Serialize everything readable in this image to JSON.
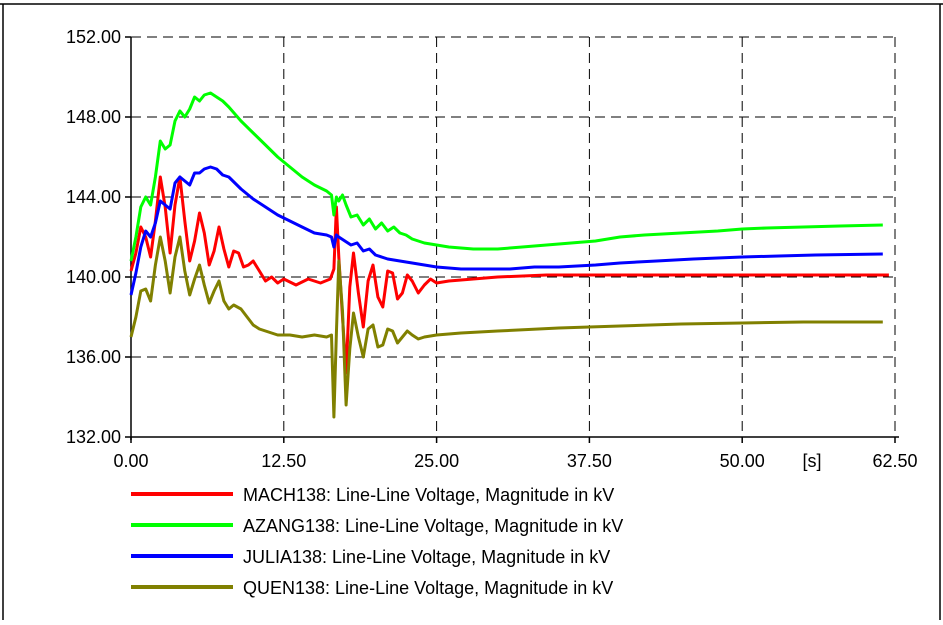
{
  "chart_data": {
    "type": "line",
    "x_unit_label": "[s]",
    "x_ticks": [
      "0.00",
      "12.50",
      "25.00",
      "37.50",
      "50.00",
      "62.50"
    ],
    "y_ticks": [
      "132.00",
      "136.00",
      "140.00",
      "144.00",
      "148.00",
      "152.00"
    ],
    "xlim": [
      0,
      62.5
    ],
    "ylim": [
      132,
      152
    ],
    "grid": true,
    "legend_position": "bottom",
    "series": [
      {
        "name": "MACH138: Line-Line Voltage, Magnitude in kV",
        "color": "#ff0000",
        "points": [
          [
            0,
            140.3
          ],
          [
            0.4,
            141.2
          ],
          [
            0.8,
            142.5
          ],
          [
            1.2,
            142.0
          ],
          [
            1.6,
            141.0
          ],
          [
            2.0,
            142.8
          ],
          [
            2.4,
            145.0
          ],
          [
            2.8,
            143.5
          ],
          [
            3.2,
            141.2
          ],
          [
            3.6,
            143.6
          ],
          [
            4.0,
            145.0
          ],
          [
            4.4,
            142.8
          ],
          [
            4.8,
            140.8
          ],
          [
            5.2,
            141.8
          ],
          [
            5.6,
            143.2
          ],
          [
            6.0,
            142.2
          ],
          [
            6.4,
            140.6
          ],
          [
            6.8,
            141.3
          ],
          [
            7.2,
            142.5
          ],
          [
            7.6,
            141.4
          ],
          [
            8.0,
            140.5
          ],
          [
            8.4,
            141.3
          ],
          [
            8.8,
            141.2
          ],
          [
            9.2,
            140.5
          ],
          [
            9.6,
            140.6
          ],
          [
            10.0,
            140.8
          ],
          [
            10.5,
            140.3
          ],
          [
            11.0,
            139.8
          ],
          [
            11.5,
            140.0
          ],
          [
            12.0,
            139.7
          ],
          [
            12.5,
            139.9
          ],
          [
            13.5,
            139.6
          ],
          [
            14.5,
            139.9
          ],
          [
            15.5,
            139.7
          ],
          [
            16.3,
            139.9
          ],
          [
            16.6,
            140.4
          ],
          [
            16.8,
            143.5
          ],
          [
            17.0,
            141.0
          ],
          [
            17.3,
            138.0
          ],
          [
            17.6,
            135.2
          ],
          [
            17.9,
            139.5
          ],
          [
            18.2,
            141.2
          ],
          [
            18.6,
            139.2
          ],
          [
            19.0,
            137.5
          ],
          [
            19.4,
            139.8
          ],
          [
            19.8,
            140.6
          ],
          [
            20.2,
            139.0
          ],
          [
            20.6,
            138.5
          ],
          [
            21.0,
            140.3
          ],
          [
            21.4,
            140.2
          ],
          [
            21.8,
            138.9
          ],
          [
            22.2,
            139.2
          ],
          [
            22.6,
            140.1
          ],
          [
            23.0,
            139.8
          ],
          [
            23.5,
            139.2
          ],
          [
            24.0,
            139.6
          ],
          [
            24.5,
            139.9
          ],
          [
            25.0,
            139.7
          ],
          [
            26,
            139.8
          ],
          [
            28,
            139.9
          ],
          [
            30,
            140.0
          ],
          [
            34,
            140.1
          ],
          [
            38,
            140.1
          ],
          [
            45,
            140.1
          ],
          [
            55,
            140.1
          ],
          [
            62,
            140.1
          ]
        ]
      },
      {
        "name": "AZANG138: Line-Line Voltage, Magnitude in kV",
        "color": "#00ff00",
        "points": [
          [
            0,
            140.8
          ],
          [
            0.4,
            142.0
          ],
          [
            0.8,
            143.5
          ],
          [
            1.2,
            144.0
          ],
          [
            1.6,
            143.6
          ],
          [
            2.0,
            145.0
          ],
          [
            2.4,
            146.8
          ],
          [
            2.8,
            146.4
          ],
          [
            3.2,
            146.6
          ],
          [
            3.6,
            147.8
          ],
          [
            4.0,
            148.3
          ],
          [
            4.4,
            148.0
          ],
          [
            4.8,
            148.4
          ],
          [
            5.2,
            149.0
          ],
          [
            5.6,
            148.8
          ],
          [
            6.0,
            149.1
          ],
          [
            6.5,
            149.2
          ],
          [
            7.0,
            149.0
          ],
          [
            7.5,
            148.8
          ],
          [
            8.0,
            148.5
          ],
          [
            9.0,
            147.8
          ],
          [
            10.0,
            147.2
          ],
          [
            11.0,
            146.6
          ],
          [
            12.0,
            146.0
          ],
          [
            13.0,
            145.5
          ],
          [
            14.0,
            145.0
          ],
          [
            15.0,
            144.6
          ],
          [
            16.0,
            144.3
          ],
          [
            16.4,
            144.1
          ],
          [
            16.6,
            143.1
          ],
          [
            16.8,
            144.0
          ],
          [
            17.0,
            143.8
          ],
          [
            17.3,
            144.1
          ],
          [
            17.6,
            143.6
          ],
          [
            18.0,
            143.0
          ],
          [
            18.5,
            143.1
          ],
          [
            19.0,
            142.6
          ],
          [
            19.5,
            142.9
          ],
          [
            20.0,
            142.4
          ],
          [
            20.5,
            142.7
          ],
          [
            21.0,
            142.3
          ],
          [
            21.5,
            142.5
          ],
          [
            22.0,
            142.2
          ],
          [
            22.5,
            142.1
          ],
          [
            23.0,
            141.9
          ],
          [
            24.0,
            141.7
          ],
          [
            25.0,
            141.6
          ],
          [
            26.0,
            141.5
          ],
          [
            28.0,
            141.4
          ],
          [
            30.0,
            141.4
          ],
          [
            32.0,
            141.5
          ],
          [
            34.0,
            141.6
          ],
          [
            36.0,
            141.7
          ],
          [
            38.0,
            141.8
          ],
          [
            40.0,
            142.0
          ],
          [
            42.0,
            142.1
          ],
          [
            45.0,
            142.2
          ],
          [
            48.0,
            142.3
          ],
          [
            50.0,
            142.4
          ],
          [
            52.0,
            142.45
          ],
          [
            55.0,
            142.5
          ],
          [
            58.0,
            142.55
          ],
          [
            61.5,
            142.6
          ]
        ]
      },
      {
        "name": "JULIA138: Line-Line Voltage, Magnitude in kV",
        "color": "#0000ff",
        "points": [
          [
            0,
            139.1
          ],
          [
            0.4,
            140.2
          ],
          [
            0.8,
            141.5
          ],
          [
            1.2,
            142.3
          ],
          [
            1.6,
            142.0
          ],
          [
            2.0,
            142.7
          ],
          [
            2.4,
            143.8
          ],
          [
            2.8,
            143.6
          ],
          [
            3.2,
            143.4
          ],
          [
            3.6,
            144.7
          ],
          [
            4.0,
            145.0
          ],
          [
            4.4,
            144.8
          ],
          [
            4.8,
            144.6
          ],
          [
            5.2,
            145.2
          ],
          [
            5.6,
            145.2
          ],
          [
            6.0,
            145.4
          ],
          [
            6.5,
            145.5
          ],
          [
            7.0,
            145.4
          ],
          [
            7.5,
            145.1
          ],
          [
            8.0,
            145.0
          ],
          [
            9.0,
            144.4
          ],
          [
            10.0,
            143.9
          ],
          [
            11.0,
            143.5
          ],
          [
            12.0,
            143.1
          ],
          [
            13.0,
            142.8
          ],
          [
            14.0,
            142.5
          ],
          [
            15.0,
            142.2
          ],
          [
            16.0,
            142.1
          ],
          [
            16.4,
            142.0
          ],
          [
            16.6,
            141.5
          ],
          [
            16.8,
            142.1
          ],
          [
            17.0,
            142.0
          ],
          [
            17.5,
            141.8
          ],
          [
            18.0,
            141.6
          ],
          [
            18.5,
            141.7
          ],
          [
            19.0,
            141.3
          ],
          [
            19.5,
            141.4
          ],
          [
            20.0,
            141.1
          ],
          [
            21.0,
            140.9
          ],
          [
            22.0,
            140.8
          ],
          [
            23.0,
            140.7
          ],
          [
            24.0,
            140.6
          ],
          [
            25.0,
            140.5
          ],
          [
            27.0,
            140.4
          ],
          [
            29.0,
            140.4
          ],
          [
            31.0,
            140.4
          ],
          [
            33.0,
            140.5
          ],
          [
            35.0,
            140.5
          ],
          [
            38.0,
            140.6
          ],
          [
            40.0,
            140.7
          ],
          [
            43.0,
            140.8
          ],
          [
            46.0,
            140.9
          ],
          [
            50.0,
            141.0
          ],
          [
            53.0,
            141.05
          ],
          [
            56.0,
            141.1
          ],
          [
            61.5,
            141.15
          ]
        ]
      },
      {
        "name": "QUEN138: Line-Line Voltage, Magnitude in kV",
        "color": "#808000",
        "points": [
          [
            0,
            137.0
          ],
          [
            0.4,
            138.0
          ],
          [
            0.8,
            139.3
          ],
          [
            1.2,
            139.4
          ],
          [
            1.6,
            138.8
          ],
          [
            2.0,
            140.6
          ],
          [
            2.4,
            142.0
          ],
          [
            2.8,
            140.8
          ],
          [
            3.2,
            139.2
          ],
          [
            3.6,
            141.0
          ],
          [
            4.0,
            142.0
          ],
          [
            4.4,
            140.3
          ],
          [
            4.8,
            139.1
          ],
          [
            5.2,
            139.9
          ],
          [
            5.6,
            140.6
          ],
          [
            6.0,
            139.6
          ],
          [
            6.4,
            138.7
          ],
          [
            6.8,
            139.3
          ],
          [
            7.2,
            139.8
          ],
          [
            7.6,
            138.8
          ],
          [
            8.0,
            138.4
          ],
          [
            8.4,
            138.6
          ],
          [
            9.0,
            138.4
          ],
          [
            9.5,
            138.0
          ],
          [
            10.0,
            137.6
          ],
          [
            10.5,
            137.4
          ],
          [
            11.0,
            137.3
          ],
          [
            12.0,
            137.1
          ],
          [
            13.0,
            137.1
          ],
          [
            14.0,
            137.0
          ],
          [
            15.0,
            137.1
          ],
          [
            16.0,
            137.0
          ],
          [
            16.4,
            137.1
          ],
          [
            16.6,
            133.0
          ],
          [
            16.8,
            137.2
          ],
          [
            17.0,
            140.8
          ],
          [
            17.3,
            138.3
          ],
          [
            17.6,
            133.6
          ],
          [
            17.9,
            136.4
          ],
          [
            18.2,
            138.2
          ],
          [
            18.6,
            137.0
          ],
          [
            19.0,
            136.0
          ],
          [
            19.4,
            137.4
          ],
          [
            19.8,
            137.6
          ],
          [
            20.2,
            136.5
          ],
          [
            20.6,
            136.6
          ],
          [
            21.0,
            137.4
          ],
          [
            21.4,
            137.3
          ],
          [
            21.8,
            136.7
          ],
          [
            22.2,
            137.0
          ],
          [
            22.6,
            137.3
          ],
          [
            23.0,
            137.1
          ],
          [
            23.5,
            136.9
          ],
          [
            24.0,
            137.0
          ],
          [
            25.0,
            137.1
          ],
          [
            27.0,
            137.2
          ],
          [
            30.0,
            137.3
          ],
          [
            35.0,
            137.45
          ],
          [
            40.0,
            137.55
          ],
          [
            45.0,
            137.65
          ],
          [
            50.0,
            137.7
          ],
          [
            55.0,
            137.75
          ],
          [
            61.5,
            137.75
          ]
        ]
      }
    ]
  }
}
